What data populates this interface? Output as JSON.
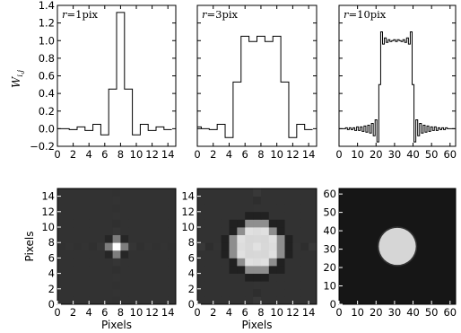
{
  "chart_data": [
    {
      "type": "line",
      "annotation": "r = 1pix",
      "ylabel": "W_{i,j}",
      "xlim": [
        0,
        15
      ],
      "ylim": [
        -0.2,
        1.4
      ],
      "xticks": [
        0,
        2,
        4,
        6,
        8,
        10,
        12,
        14
      ],
      "yticks": [
        -0.2,
        0.0,
        0.2,
        0.4,
        0.6,
        0.8,
        1.0,
        1.2,
        1.4
      ],
      "step": "mid",
      "x": [
        0,
        1,
        2,
        3,
        4,
        5,
        6,
        7,
        8,
        9,
        10,
        11,
        12,
        13,
        14
      ],
      "y": [
        0.0,
        0.0,
        -0.01,
        0.02,
        -0.02,
        0.05,
        -0.07,
        0.45,
        1.32,
        0.45,
        -0.07,
        0.05,
        -0.02,
        0.02,
        -0.01
      ]
    },
    {
      "type": "line",
      "annotation": "r = 3pix",
      "xlim": [
        0,
        15
      ],
      "ylim": [
        -0.2,
        1.4
      ],
      "xticks": [
        0,
        2,
        4,
        6,
        8,
        10,
        12,
        14
      ],
      "step": "mid",
      "x": [
        0,
        1,
        2,
        3,
        4,
        5,
        6,
        7,
        8,
        9,
        10,
        11,
        12,
        13,
        14
      ],
      "y": [
        0.02,
        0.0,
        -0.01,
        0.05,
        -0.1,
        0.53,
        1.05,
        0.99,
        1.05,
        0.99,
        1.05,
        0.53,
        -0.1,
        0.05,
        -0.01
      ]
    },
    {
      "type": "line",
      "annotation": "r = 10pix",
      "xlim": [
        0,
        63
      ],
      "ylim": [
        -0.2,
        1.4
      ],
      "xticks": [
        0,
        10,
        20,
        30,
        40,
        50,
        60
      ],
      "step": "mid",
      "x": [
        0,
        1,
        2,
        3,
        4,
        5,
        6,
        7,
        8,
        9,
        10,
        11,
        12,
        13,
        14,
        15,
        16,
        17,
        18,
        19,
        20,
        21,
        22,
        23,
        24,
        25,
        26,
        27,
        28,
        29,
        30,
        31,
        32,
        33,
        34,
        35,
        36,
        37,
        38,
        39,
        40,
        41,
        42,
        43,
        44,
        45,
        46,
        47,
        48,
        49,
        50,
        51,
        52,
        53,
        54,
        55,
        56,
        57,
        58,
        59,
        60,
        61,
        62
      ],
      "y": [
        0.0,
        0.0,
        0.0,
        0.0,
        0.01,
        -0.01,
        0.01,
        -0.01,
        0.01,
        -0.02,
        0.02,
        -0.02,
        0.02,
        -0.03,
        0.03,
        -0.04,
        0.04,
        -0.05,
        0.06,
        -0.08,
        0.1,
        -0.15,
        0.5,
        1.1,
        0.96,
        1.03,
        0.98,
        1.01,
        0.99,
        1.0,
        1.01,
        0.99,
        1.01,
        1.0,
        0.99,
        1.01,
        0.98,
        1.03,
        0.96,
        1.1,
        0.5,
        -0.15,
        0.1,
        -0.08,
        0.06,
        -0.05,
        0.04,
        -0.04,
        0.03,
        -0.03,
        0.02,
        -0.02,
        0.02,
        -0.02,
        0.01,
        -0.01,
        0.01,
        -0.01,
        0.01,
        0.0,
        0.0,
        0.0,
        0.0
      ]
    },
    {
      "type": "heatmap",
      "ylabel": "Pixels",
      "xlabel": "Pixels",
      "xlim": [
        0,
        15
      ],
      "ylim": [
        0,
        15
      ],
      "xticks": [
        0,
        2,
        4,
        6,
        8,
        10,
        12,
        14
      ],
      "yticks": [
        0,
        2,
        4,
        6,
        8,
        10,
        12,
        14
      ],
      "kernel_radius": 1,
      "grid_size": 15
    },
    {
      "type": "heatmap",
      "xlabel": "Pixels",
      "xlim": [
        0,
        15
      ],
      "ylim": [
        0,
        15
      ],
      "xticks": [
        0,
        2,
        4,
        6,
        8,
        10,
        12,
        14
      ],
      "yticks": [
        0,
        2,
        4,
        6,
        8,
        10,
        12,
        14
      ],
      "kernel_radius": 3,
      "grid_size": 15
    },
    {
      "type": "heatmap",
      "xlabel": "",
      "xlim": [
        0,
        63
      ],
      "ylim": [
        0,
        63
      ],
      "xticks": [
        0,
        10,
        20,
        30,
        40,
        50,
        60
      ],
      "yticks": [
        0,
        10,
        20,
        30,
        40,
        50,
        60
      ],
      "kernel_radius": 10,
      "grid_size": 63
    }
  ]
}
